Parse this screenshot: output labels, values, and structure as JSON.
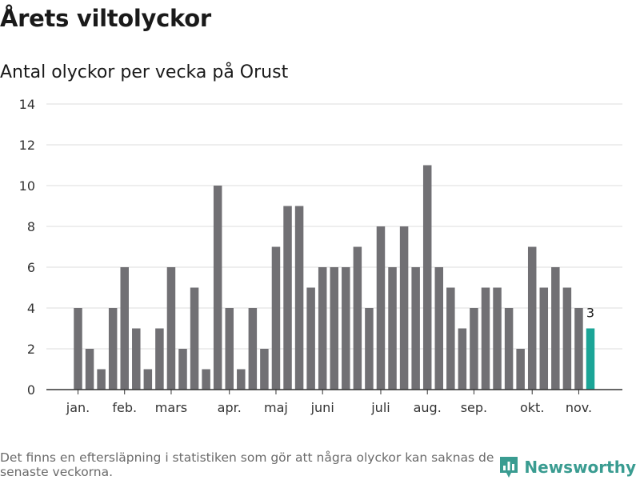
{
  "header": {
    "title": "Årets viltolyckor",
    "subtitle": "Antal olyckor per vecka på Orust"
  },
  "footer": {
    "note": "Det finns en eftersläpning i statistiken som gör att några olyckor kan saknas de senaste veckorna.",
    "brand": "Newsworthy",
    "brand_icon": "bar-chart-logo-icon"
  },
  "colors": {
    "bar": "#717074",
    "highlight": "#1ba597",
    "grid": "#dcdcdc",
    "axis": "#333333",
    "brand": "#3a9c91"
  },
  "chart_data": {
    "type": "bar",
    "title": "Antal olyckor per vecka på Orust",
    "xlabel": "",
    "ylabel": "",
    "ylim": [
      0,
      14
    ],
    "yticks": [
      0,
      2,
      4,
      6,
      8,
      10,
      12,
      14
    ],
    "grid": true,
    "weeks": [
      1,
      2,
      3,
      4,
      5,
      6,
      7,
      8,
      9,
      10,
      11,
      12,
      13,
      14,
      15,
      16,
      17,
      18,
      19,
      20,
      21,
      22,
      23,
      24,
      25,
      26,
      27,
      28,
      29,
      30,
      31,
      32,
      33,
      34,
      35,
      36,
      37,
      38,
      39,
      40,
      41,
      42,
      43,
      44,
      45
    ],
    "values": [
      4,
      2,
      1,
      4,
      6,
      3,
      1,
      3,
      6,
      2,
      5,
      1,
      10,
      4,
      1,
      4,
      2,
      7,
      9,
      9,
      5,
      6,
      6,
      6,
      7,
      4,
      8,
      6,
      8,
      6,
      11,
      6,
      5,
      3,
      4,
      5,
      5,
      4,
      2,
      7,
      5,
      6,
      5,
      4,
      3
    ],
    "highlight_index": 44,
    "highlight_label": "3",
    "month_labels": [
      {
        "label": "jan.",
        "at_week": 1
      },
      {
        "label": "feb.",
        "at_week": 5
      },
      {
        "label": "mars",
        "at_week": 9
      },
      {
        "label": "apr.",
        "at_week": 14
      },
      {
        "label": "maj",
        "at_week": 18
      },
      {
        "label": "juni",
        "at_week": 22
      },
      {
        "label": "juli",
        "at_week": 27
      },
      {
        "label": "aug.",
        "at_week": 31
      },
      {
        "label": "sep.",
        "at_week": 35
      },
      {
        "label": "okt.",
        "at_week": 40
      },
      {
        "label": "nov.",
        "at_week": 44
      }
    ]
  }
}
